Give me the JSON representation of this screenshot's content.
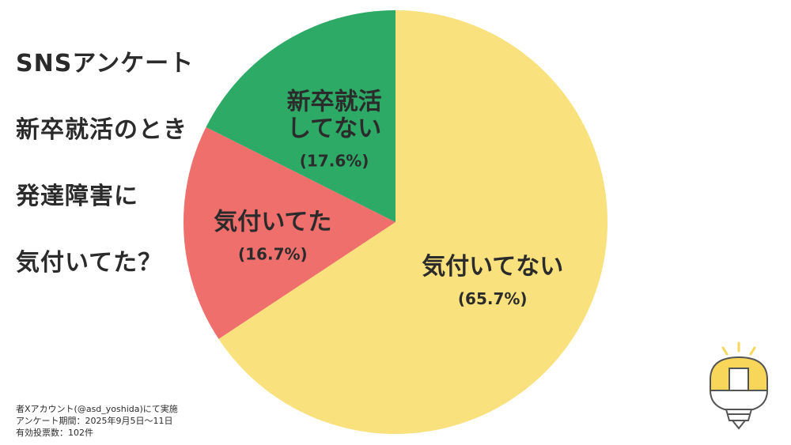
{
  "title": {
    "lines": [
      "SNSアンケート",
      "新卒就活のとき",
      "発達障害に",
      "気付いてた？"
    ]
  },
  "footnote": {
    "lines": [
      "者Xアカウント(@asd_yoshida)にて実施",
      "アンケート期間：2025年9月5日〜11日",
      "有効投票数：102件"
    ]
  },
  "chart_data": {
    "type": "pie",
    "title": "SNSアンケート 新卒就活のとき発達障害に気付いてた？",
    "slices": [
      {
        "label": [
          "気付いてない"
        ],
        "percent_label": "(65.7%)",
        "value": 65.7,
        "color": "#F9E27D"
      },
      {
        "label": [
          "気付いてた"
        ],
        "percent_label": "(16.7%)",
        "value": 16.7,
        "color": "#EF6F6C"
      },
      {
        "label": [
          "新卒就活",
          "してない"
        ],
        "percent_label": "(17.6%)",
        "value": 17.6,
        "color": "#2EAA67"
      }
    ]
  },
  "logo": {
    "icon": "lightbulb-logo-icon",
    "color": "#F7D65A"
  }
}
